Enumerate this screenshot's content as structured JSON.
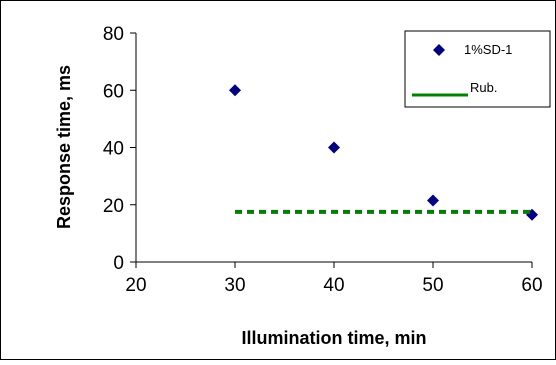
{
  "chart_data": {
    "type": "scatter",
    "xlabel": "Illumination time, min",
    "ylabel": "Response time, ms",
    "xlim": [
      20,
      60
    ],
    "ylim": [
      0,
      80
    ],
    "xticks": [
      20,
      30,
      40,
      50,
      60
    ],
    "yticks": [
      0,
      20,
      40,
      60,
      80
    ],
    "grid": false,
    "legend_position": "top-right",
    "series": [
      {
        "name": "1%SD-1",
        "kind": "scatter",
        "marker": "diamond",
        "color": "#000080",
        "x": [
          30,
          40,
          50,
          60
        ],
        "y": [
          60,
          40,
          21.5,
          16.5
        ]
      },
      {
        "name": "Rub.",
        "kind": "line",
        "line_style": "dotted",
        "color": "#008000",
        "x": [
          30,
          60
        ],
        "y": [
          17.5,
          17.5
        ]
      }
    ]
  }
}
